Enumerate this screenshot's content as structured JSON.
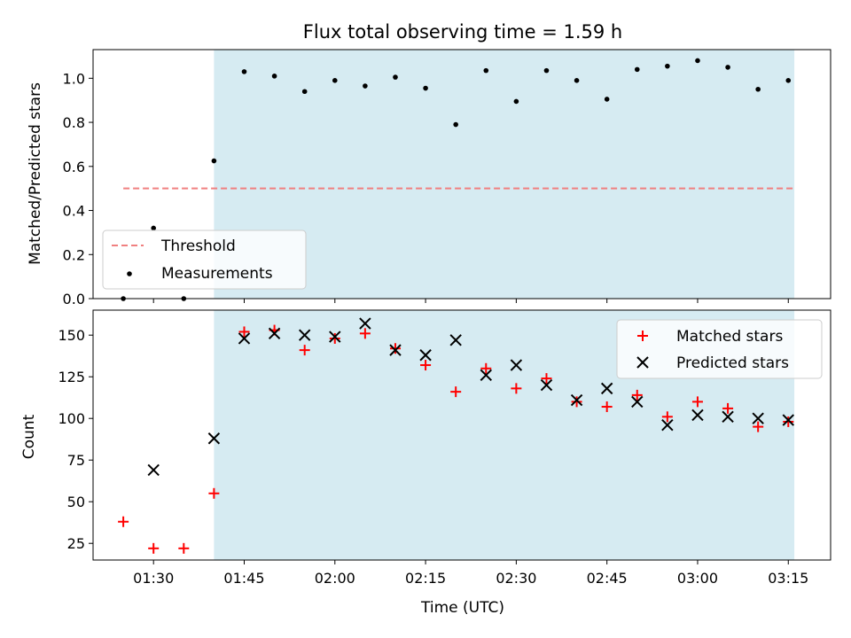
{
  "chart_data": [
    {
      "type": "scatter",
      "title": "Flux total observing time = 1.59 h",
      "ylabel": "Matched/Predicted stars",
      "xlabel": "",
      "xlim": [
        "01:20",
        "03:22"
      ],
      "ylim": [
        0,
        1.13
      ],
      "yticks": [
        "0.0",
        "0.2",
        "0.4",
        "0.6",
        "0.8",
        "1.0"
      ],
      "grid": false,
      "legend_position": "lower-left",
      "shaded_region": {
        "from": "01:40",
        "to": "03:16",
        "color": "#add8e6"
      },
      "threshold": {
        "name": "Threshold",
        "y": 0.5,
        "from": "01:25",
        "to": "03:16",
        "color": "#f08080"
      },
      "series": [
        {
          "name": "Measurements",
          "marker": "dot",
          "color": "#000000",
          "x": [
            "01:25",
            "01:30",
            "01:35",
            "01:40",
            "01:45",
            "01:50",
            "01:55",
            "02:00",
            "02:05",
            "02:10",
            "02:15",
            "02:20",
            "02:25",
            "02:30",
            "02:35",
            "02:40",
            "02:45",
            "02:50",
            "02:55",
            "03:00",
            "03:05",
            "03:10",
            "03:15"
          ],
          "y": [
            0.0,
            0.32,
            0.0,
            0.625,
            1.03,
            1.01,
            0.94,
            0.99,
            0.965,
            1.005,
            0.955,
            0.79,
            1.035,
            0.895,
            1.035,
            0.99,
            0.905,
            1.04,
            1.055,
            1.08,
            1.05,
            0.95,
            0.99
          ]
        }
      ]
    },
    {
      "type": "scatter",
      "title": "",
      "xlabel": "Time (UTC)",
      "ylabel": "Count",
      "xlim": [
        "01:20",
        "03:22"
      ],
      "ylim": [
        15,
        165
      ],
      "xticks": [
        "01:30",
        "01:45",
        "02:00",
        "02:15",
        "02:30",
        "02:45",
        "03:00",
        "03:15"
      ],
      "yticks": [
        "25",
        "50",
        "75",
        "100",
        "125",
        "150"
      ],
      "grid": false,
      "legend_position": "upper-right",
      "shaded_region": {
        "from": "01:40",
        "to": "03:16",
        "color": "#add8e6"
      },
      "series": [
        {
          "name": "Matched stars",
          "marker": "plus",
          "color": "#ff0000",
          "x": [
            "01:25",
            "01:30",
            "01:35",
            "01:40",
            "01:45",
            "01:50",
            "01:55",
            "02:00",
            "02:05",
            "02:10",
            "02:15",
            "02:20",
            "02:25",
            "02:30",
            "02:35",
            "02:40",
            "02:45",
            "02:50",
            "02:55",
            "03:00",
            "03:05",
            "03:10",
            "03:15"
          ],
          "y": [
            38,
            22,
            22,
            55,
            152,
            153,
            141,
            148,
            151,
            142,
            132,
            116,
            130,
            118,
            124,
            110,
            107,
            114,
            101,
            110,
            106,
            95,
            98
          ]
        },
        {
          "name": "Predicted stars",
          "marker": "x",
          "color": "#000000",
          "x": [
            "01:30",
            "01:40",
            "01:45",
            "01:50",
            "01:55",
            "02:00",
            "02:05",
            "02:10",
            "02:15",
            "02:20",
            "02:25",
            "02:30",
            "02:35",
            "02:40",
            "02:45",
            "02:50",
            "02:55",
            "03:00",
            "03:05",
            "03:10",
            "03:15"
          ],
          "y": [
            69,
            88,
            148,
            151,
            150,
            149,
            157,
            141,
            138,
            147,
            126,
            132,
            120,
            111,
            118,
            110,
            96,
            102,
            101,
            100,
            99
          ]
        }
      ]
    }
  ]
}
